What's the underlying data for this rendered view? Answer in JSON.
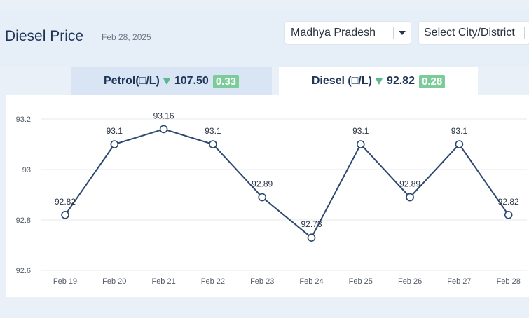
{
  "header": {
    "title": "Diesel Price",
    "date": "Feb 28, 2025",
    "state_select": {
      "value": "Madhya Pradesh"
    },
    "city_select": {
      "placeholder": "Select City/District"
    }
  },
  "tabs": [
    {
      "name_text": "Petrol(□/L)",
      "price": "107.50",
      "change": "0.33",
      "trend": "down",
      "active": false
    },
    {
      "name_text": "Diesel (□/L)",
      "price": "92.82",
      "change": "0.28",
      "trend": "down",
      "active": true
    }
  ],
  "colors": {
    "line": "#2c4870",
    "badge": "#7ccc99",
    "trend_down": "#5cb88a"
  },
  "chart_data": {
    "type": "line",
    "categories": [
      "Feb 19",
      "Feb 20",
      "Feb 21",
      "Feb 22",
      "Feb 23",
      "Feb 24",
      "Feb 25",
      "Feb 26",
      "Feb 27",
      "Feb 28"
    ],
    "values": [
      92.82,
      93.1,
      93.16,
      93.1,
      92.89,
      92.73,
      93.1,
      92.89,
      93.1,
      92.82
    ],
    "data_labels": [
      "92.82",
      "93.1",
      "93.16",
      "93.1",
      "92.89",
      "92.73",
      "93.1",
      "92.89",
      "93.1",
      "92.82"
    ],
    "y_ticks": [
      "92.6",
      "92.8",
      "93",
      "93.2"
    ],
    "ylim": [
      92.6,
      93.2
    ],
    "grid": "horizontal"
  }
}
